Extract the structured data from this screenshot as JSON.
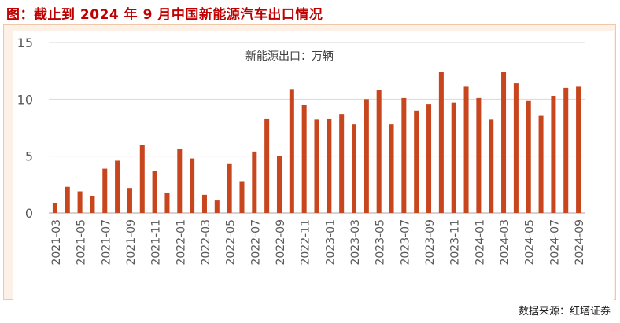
{
  "header": {
    "title": "图：截止到 2024 年 9 月中国新能源汽车出口情况"
  },
  "footer": {
    "source": "数据来源：红塔证券"
  },
  "chart_data": {
    "type": "bar",
    "annotation": "新能源出口：万辆",
    "categories": [
      "2021-03",
      "2021-04",
      "2021-05",
      "2021-06",
      "2021-07",
      "2021-08",
      "2021-09",
      "2021-10",
      "2021-11",
      "2021-12",
      "2022-01",
      "2022-02",
      "2022-03",
      "2022-04",
      "2022-05",
      "2022-06",
      "2022-07",
      "2022-08",
      "2022-09",
      "2022-10",
      "2022-11",
      "2022-12",
      "2023-01",
      "2023-02",
      "2023-03",
      "2023-04",
      "2023-05",
      "2023-06",
      "2023-07",
      "2023-08",
      "2023-09",
      "2023-10",
      "2023-11",
      "2023-12",
      "2024-01",
      "2024-02",
      "2024-03",
      "2024-04",
      "2024-05",
      "2024-06",
      "2024-07",
      "2024-08",
      "2024-09"
    ],
    "tick_labels": [
      "2021-03",
      "2021-05",
      "2021-07",
      "2021-09",
      "2021-11",
      "2022-01",
      "2022-03",
      "2022-05",
      "2022-07",
      "2022-09",
      "2022-11",
      "2023-01",
      "2023-03",
      "2023-05",
      "2023-07",
      "2023-09",
      "2023-11",
      "2024-01",
      "2024-03",
      "2024-05",
      "2024-07",
      "2024-09"
    ],
    "values": [
      0.9,
      2.3,
      1.9,
      1.5,
      3.9,
      4.6,
      2.2,
      6.0,
      3.7,
      1.8,
      5.6,
      4.8,
      1.6,
      1.1,
      4.3,
      2.8,
      5.4,
      8.3,
      5.0,
      10.9,
      9.5,
      8.2,
      8.3,
      8.7,
      7.8,
      10.0,
      10.8,
      7.8,
      10.1,
      9.0,
      9.6,
      12.4,
      9.7,
      11.1,
      10.1,
      8.2,
      12.4,
      11.4,
      9.9,
      8.6,
      10.3,
      11.0,
      11.1
    ],
    "yticks": [
      "0",
      "5",
      "10",
      "15"
    ],
    "ylim": [
      0,
      15
    ],
    "grid": true,
    "bar_color": "#c8461e",
    "grid_color": "#d9d9d9",
    "text_color": "#595959"
  }
}
